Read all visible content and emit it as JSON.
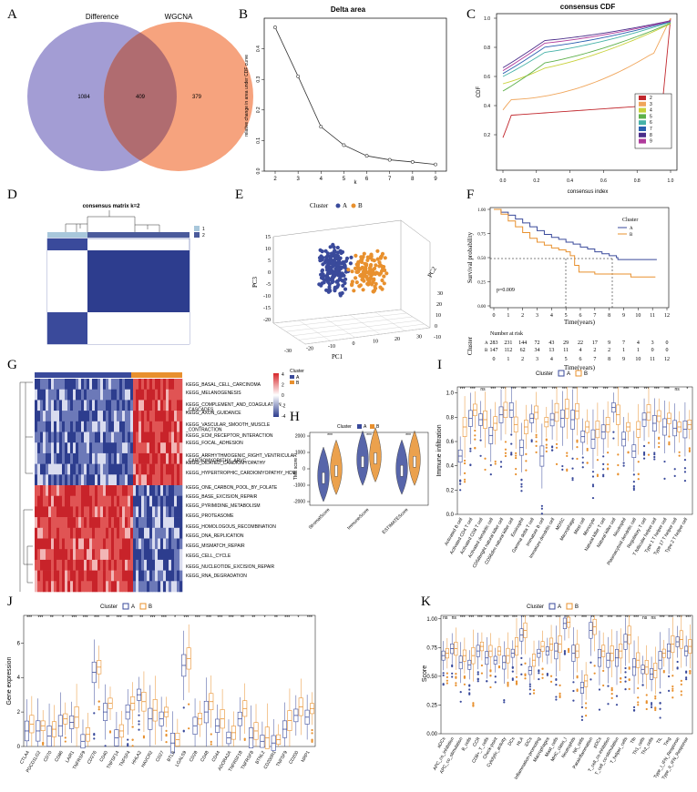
{
  "panel_labels": [
    "A",
    "B",
    "C",
    "D",
    "E",
    "F",
    "G",
    "H",
    "I",
    "J",
    "K"
  ],
  "colors": {
    "blue": "#3a4a9b",
    "orange": "#e8902e",
    "venn_left": "#a39dd4",
    "venn_right": "#f6a37e",
    "venn_overlap": "#b06c70"
  },
  "chart_data": [
    {
      "id": "A",
      "type": "venn",
      "sets": [
        "Difference",
        "WGCNA"
      ],
      "counts": {
        "left_only": "1084",
        "both": "409",
        "right_only": "379"
      }
    },
    {
      "id": "B",
      "type": "line",
      "title": "Delta area",
      "xlabel": "k",
      "ylabel": "relative change in area under CDF curve",
      "x": [
        2,
        3,
        4,
        5,
        6,
        7,
        8,
        9
      ],
      "values": [
        0.47,
        0.31,
        0.145,
        0.085,
        0.05,
        0.037,
        0.03,
        0.022
      ],
      "xticks": [
        "2",
        "3",
        "4",
        "5",
        "6",
        "7",
        "8",
        "9"
      ],
      "yticks": [
        "0.0",
        "0.1",
        "0.2",
        "0.3",
        "0.4"
      ],
      "ylim": [
        0,
        0.5
      ]
    },
    {
      "id": "C",
      "type": "line",
      "title": "consensus CDF",
      "xlabel": "consensus index",
      "ylabel": "CDF",
      "xticks": [
        "0.0",
        "0.2",
        "0.4",
        "0.6",
        "0.8",
        "1.0"
      ],
      "yticks": [
        "0.2",
        "0.4",
        "0.6",
        "0.8",
        "1.0"
      ],
      "legend": [
        "2",
        "3",
        "4",
        "5",
        "6",
        "7",
        "8",
        "9"
      ],
      "series_colors": [
        "#c1272d",
        "#f0a55a",
        "#c8d13a",
        "#5db04a",
        "#46b2a8",
        "#2a5fb0",
        "#4b2d8a",
        "#b03a9b"
      ]
    },
    {
      "id": "D",
      "type": "heatmap",
      "title": "consensus matrix k=2",
      "legend": [
        "1",
        "2"
      ]
    },
    {
      "id": "E",
      "type": "scatter",
      "legend_title": "Cluster",
      "legend": [
        "A",
        "B"
      ],
      "xlabel": "PC1",
      "ylabel": "PC3",
      "zlabel": "PC2",
      "xticks": [
        "-30",
        "-20",
        "-10",
        "0",
        "10",
        "20",
        "30"
      ],
      "yticks": [
        "-20",
        "-15",
        "-10",
        "-5",
        "0",
        "5",
        "10",
        "15"
      ],
      "zticks": [
        "-10",
        "0",
        "10",
        "20",
        "30"
      ]
    },
    {
      "id": "F",
      "type": "line",
      "legend_title": "Cluster",
      "legend": [
        "A",
        "B"
      ],
      "xlabel": "Time(years)",
      "ylabel": "Survival probability",
      "pvalue": "p=0.009",
      "xticks": [
        "0",
        "1",
        "2",
        "3",
        "4",
        "5",
        "6",
        "7",
        "8",
        "9",
        "10",
        "11",
        "12"
      ],
      "yticks": [
        "0.00",
        "0.25",
        "0.50",
        "0.75",
        "1.00"
      ],
      "risk_title": "Number at risk",
      "risk_ylabel": "Cluster",
      "risk_A": [
        "283",
        "231",
        "144",
        "72",
        "43",
        "29",
        "22",
        "17",
        "9",
        "7",
        "4",
        "3",
        "0"
      ],
      "risk_B": [
        "147",
        "112",
        "62",
        "34",
        "13",
        "11",
        "4",
        "2",
        "2",
        "1",
        "1",
        "0",
        "0"
      ],
      "risk_xlabel": "Time(years)"
    },
    {
      "id": "G",
      "type": "heatmap",
      "legend_title": "Cluster",
      "legend": [
        "A",
        "B"
      ],
      "scale": [
        "4",
        "2",
        "0",
        "-2",
        "-4"
      ],
      "rows": [
        "KEGG_BASAL_CELL_CARCINOMA",
        "KEGG_MELANOGENESIS",
        "KEGG_COMPLEMENT_AND_COAGULATION\n_CASCADES",
        "KEGG_AXON_GUIDANCE",
        "KEGG_VASCULAR_SMOOTH_MUSCLE\n_CONTRACTION",
        "KEGG_ECM_RECEPTOR_INTERACTION",
        "KEGG_FOCAL_ADHESION",
        "KEGG_ARRHYTHMOGENIC_RIGHT_VENTRICULAR\n_CARDIOMYOPATHY_ARVC",
        "KEGG_DILATED_CARDIOMYOPATHY",
        "KEGG_HYPERTROPHIC_CARDIOMYOPATHY_HCM",
        "KEGG_ONE_CARBON_POOL_BY_FOLATE",
        "KEGG_BASE_EXCISION_REPAIR",
        "KEGG_PYRIMIDINE_METABOLISM",
        "KEGG_PROTEASOME",
        "KEGG_HOMOLOGOUS_RECOMBINATION",
        "KEGG_DNA_REPLICATION",
        "KEGG_MISMATCH_REPAIR",
        "KEGG_CELL_CYCLE",
        "KEGG_NUCLEOTIDE_EXCISION_REPAIR",
        "KEGG_RNA_DEGRADATION"
      ]
    },
    {
      "id": "H",
      "type": "violin",
      "legend_title": "Cluster",
      "legend": [
        "A",
        "B"
      ],
      "ylabel": "TME score",
      "categories": [
        "StromalScore",
        "ImmuneScore",
        "ESTIMATEScore"
      ],
      "sig": [
        "***",
        "***",
        "***"
      ],
      "yticks": [
        "2000",
        "1000",
        "0",
        "-1000",
        "-2000"
      ]
    },
    {
      "id": "I",
      "type": "box",
      "legend_title": "Cluster",
      "legend": [
        "A",
        "B"
      ],
      "ylabel": "Immune infiltration",
      "yticks": [
        "1.0",
        "0.8",
        "0.6",
        "0.4",
        "0.2",
        "0.0"
      ],
      "categories": [
        "Activated B cell",
        "Activated CD4 T cell",
        "Activated CD8 T cell",
        "Activated dendritic cell",
        "CD56bright natural killer cell",
        "CD56dim natural killer cell",
        "Eosinophil",
        "Gamma delta T cell",
        "Immature B cell",
        "Immature dendritic cell",
        "MDSC",
        "Macrophage",
        "Mast cell",
        "Monocyte",
        "Natural killer T cell",
        "Natural killer cell",
        "Neutrophil",
        "Plasmacytoid dendritic cell",
        "Regulatory T cell",
        "T follicular helper cell",
        "Type 1 T helper cell",
        "Type 17 T helper cell",
        "Type 2 T helper cell"
      ],
      "sig": [
        "***",
        "***",
        "ns",
        "***",
        "***",
        "***",
        "***",
        "***",
        "***",
        "***",
        "***",
        "***",
        "***",
        "***",
        "***",
        "***",
        "***",
        "***",
        "***",
        "***",
        "***",
        "ns",
        "*"
      ],
      "A_median": [
        0.48,
        0.79,
        0.78,
        0.65,
        0.82,
        0.86,
        0.55,
        0.79,
        0.48,
        0.78,
        0.79,
        0.78,
        0.64,
        0.62,
        0.68,
        0.88,
        0.62,
        0.52,
        0.78,
        0.75,
        0.72,
        0.71,
        0.7
      ],
      "B_median": [
        0.72,
        0.86,
        0.78,
        0.75,
        0.86,
        0.74,
        0.72,
        0.84,
        0.76,
        0.84,
        0.87,
        0.85,
        0.72,
        0.7,
        0.74,
        0.82,
        0.72,
        0.7,
        0.84,
        0.81,
        0.79,
        0.72,
        0.74
      ]
    },
    {
      "id": "J",
      "type": "box",
      "legend_title": "Cluster",
      "legend": [
        "A",
        "B"
      ],
      "ylabel": "Gene expression",
      "yticks": [
        "6",
        "4",
        "2",
        "0"
      ],
      "ylim": [
        0,
        7.5
      ],
      "categories": [
        "CTLA4",
        "PDCD1LG2",
        "CD70",
        "CD86",
        "LAIR1",
        "TNFRSF9",
        "CD276",
        "CD40",
        "TNFSF14",
        "TNFSF4",
        "HHLA2",
        "HAVCR2",
        "CD27",
        "BTLA",
        "LGALS9",
        "CD28",
        "CD48",
        "CD44",
        "ADORA2A",
        "TNFRSF18",
        "TNFRSF8",
        "BTNL2",
        "CD200R1",
        "TNFSF9",
        "CD200",
        "NRP1"
      ],
      "sig": [
        "***",
        "***",
        "**",
        "*",
        "***",
        "***",
        "***",
        "**",
        "***",
        "***",
        "**",
        "***",
        "***",
        "*",
        "***",
        "***",
        "***",
        "***",
        "***",
        "**",
        "**",
        "*",
        "**",
        "***",
        "*",
        "***"
      ],
      "A_median": [
        0.9,
        0.9,
        0.6,
        1.2,
        1.4,
        0.3,
        4.3,
        2.0,
        0.5,
        2.0,
        3.0,
        1.6,
        1.6,
        0.2,
        4.7,
        1.2,
        2.0,
        1.2,
        0.5,
        1.6,
        0.5,
        0.3,
        0.2,
        1.0,
        1.8,
        1.7
      ],
      "B_median": [
        1.3,
        1.2,
        1.0,
        1.6,
        1.7,
        0.7,
        4.6,
        2.5,
        0.9,
        2.5,
        2.6,
        2.1,
        2.0,
        0.4,
        5.1,
        1.6,
        2.6,
        1.6,
        0.8,
        2.2,
        0.9,
        0.5,
        0.4,
        1.5,
        2.3,
        2.2
      ]
    },
    {
      "id": "K",
      "type": "box",
      "legend_title": "Cluster",
      "legend": [
        "A",
        "B"
      ],
      "ylabel": "Score",
      "yticks": [
        "1.00",
        "0.75",
        "0.50",
        "0.25",
        "0.00"
      ],
      "ylim": [
        0,
        1
      ],
      "categories": [
        "aDCs",
        "APC_co_inhibition",
        "APC_co_stimulation",
        "B_cells",
        "CCR",
        "CD8+_T_cells",
        "Check-point",
        "Cytolytic_activity",
        "DCs",
        "HLA",
        "iDCs",
        "Inflammation-promoting",
        "Macrophages",
        "Mast_cells",
        "MHC_class_I",
        "Neutrophils",
        "NK_cells",
        "Parainflammation",
        "pDCs",
        "T_cell_co-inhibition",
        "T_cell_co-stimulation",
        "T_helper_cells",
        "Tfh",
        "Th1_cells",
        "Th2_cells",
        "TIL",
        "Treg",
        "Type_I_IFN_Response",
        "Type_II_IFN_Response"
      ],
      "sig": [
        "ns",
        "ns",
        "***",
        "***",
        "***",
        "***",
        "***",
        "***",
        "***",
        "***",
        "***",
        "***",
        "***",
        "***",
        "***",
        "*",
        "***",
        "**",
        "**",
        "***",
        "***",
        "***",
        "***",
        "ns",
        "ns",
        "***",
        "***",
        "***",
        "***"
      ],
      "A_median": [
        0.68,
        0.74,
        0.62,
        0.6,
        0.72,
        0.66,
        0.64,
        0.62,
        0.7,
        0.86,
        0.55,
        0.7,
        0.72,
        0.72,
        0.96,
        0.7,
        0.4,
        0.9,
        0.66,
        0.64,
        0.66,
        0.8,
        0.58,
        0.56,
        0.52,
        0.64,
        0.72,
        0.8,
        0.72
      ],
      "B_median": [
        0.7,
        0.74,
        0.68,
        0.68,
        0.76,
        0.72,
        0.72,
        0.68,
        0.76,
        0.9,
        0.64,
        0.76,
        0.78,
        0.78,
        0.97,
        0.72,
        0.46,
        0.93,
        0.72,
        0.7,
        0.72,
        0.86,
        0.64,
        0.58,
        0.55,
        0.7,
        0.78,
        0.82,
        0.76
      ]
    }
  ]
}
